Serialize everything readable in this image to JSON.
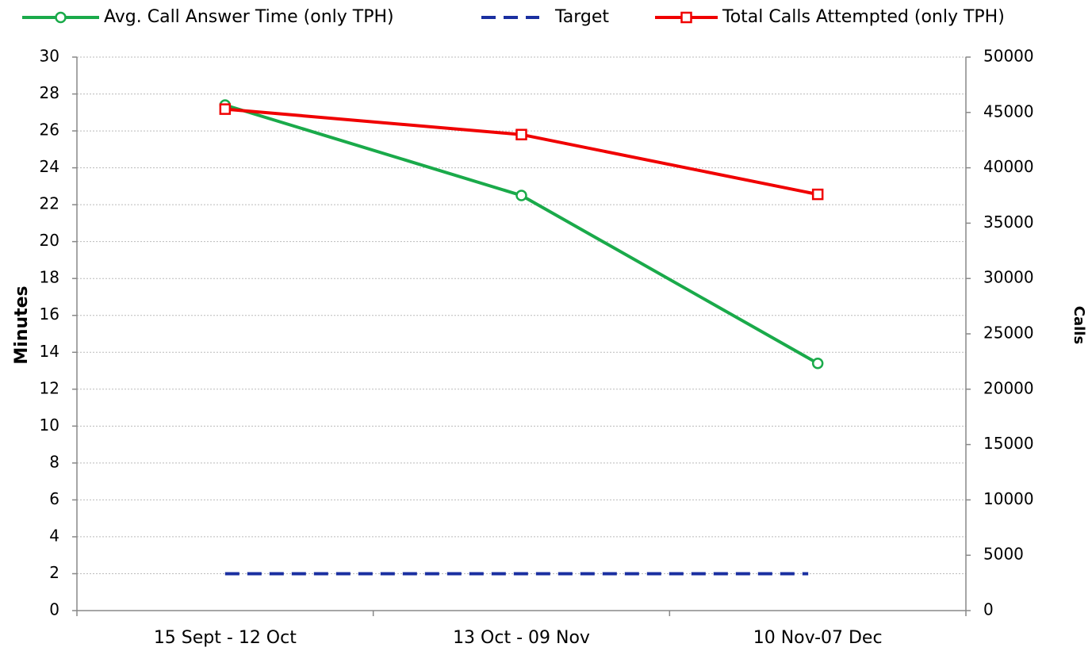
{
  "chart_data": {
    "type": "line",
    "categories": [
      "15 Sept - 12 Oct",
      "13 Oct - 09 Nov",
      "10 Nov-07 Dec"
    ],
    "ylabel": "Minutes",
    "y2label": "Calls",
    "ylim": [
      0,
      30
    ],
    "yticks": [
      0,
      2,
      4,
      6,
      8,
      10,
      12,
      14,
      16,
      18,
      20,
      22,
      24,
      26,
      28,
      30
    ],
    "y2lim": [
      0,
      50000
    ],
    "y2ticks": [
      0,
      5000,
      10000,
      15000,
      20000,
      25000,
      30000,
      35000,
      40000,
      45000,
      50000
    ],
    "grid": true,
    "legend": "top",
    "series": [
      {
        "name": "Avg. Call Answer Time (only TPH)",
        "color": "#1aaa4a",
        "marker": "circle",
        "values": [
          27.4,
          22.5,
          13.4
        ]
      },
      {
        "name": "Target",
        "color": "#1a2fa0",
        "dashed": true,
        "values": [
          2,
          2,
          2
        ]
      },
      {
        "name": "Total Calls Attempted (only TPH)",
        "color": "#f00000",
        "marker": "square",
        "axis": "y2",
        "values": [
          45300,
          43000,
          37600
        ]
      }
    ]
  }
}
